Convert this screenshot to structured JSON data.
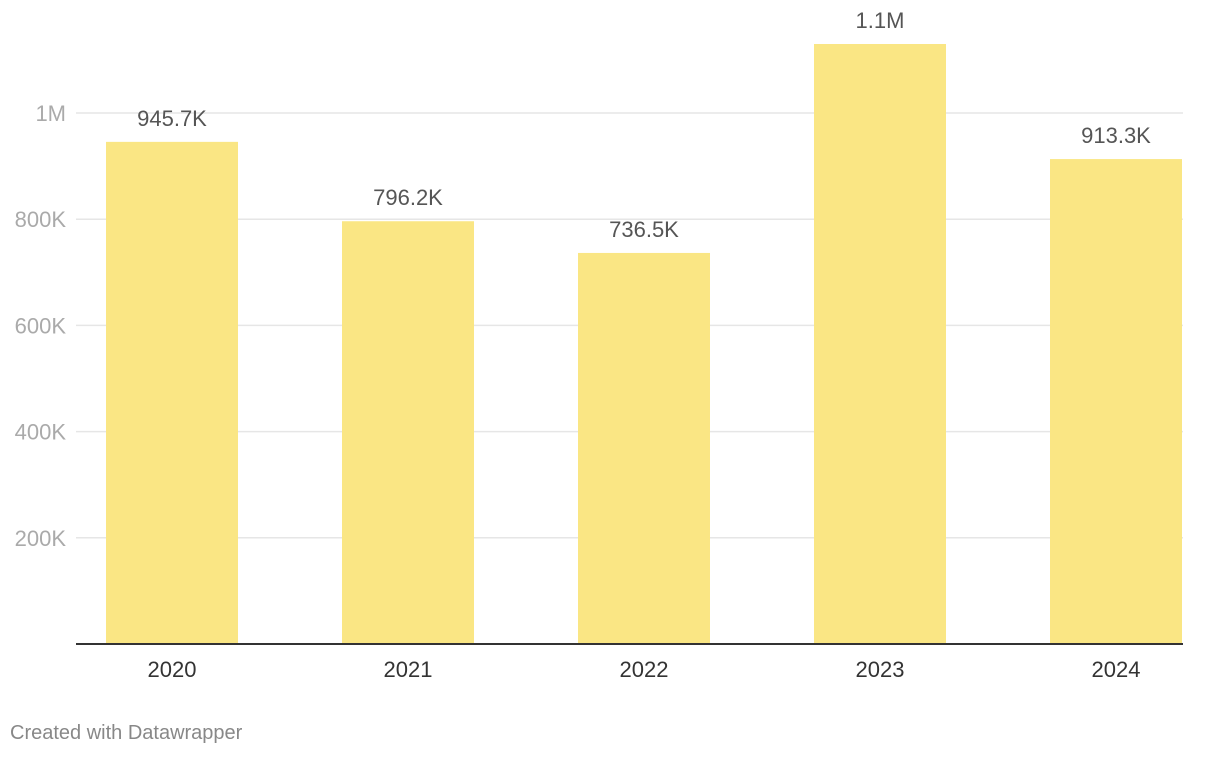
{
  "chart_data": {
    "type": "bar",
    "categories": [
      "2020",
      "2021",
      "2022",
      "2023",
      "2024"
    ],
    "values": [
      945700,
      796200,
      736500,
      1130000,
      913300
    ],
    "value_labels": [
      "945.7K",
      "796.2K",
      "736.5K",
      "1.1M",
      "913.3K"
    ],
    "y_ticks": [
      200000,
      400000,
      600000,
      800000,
      1000000
    ],
    "y_tick_labels": [
      "200K",
      "400K",
      "600K",
      "800K",
      "1M"
    ],
    "ylim": [
      0,
      1130000
    ],
    "grid": true,
    "bar_color": "#fae684"
  },
  "footer": {
    "credit": "Created with Datawrapper"
  }
}
